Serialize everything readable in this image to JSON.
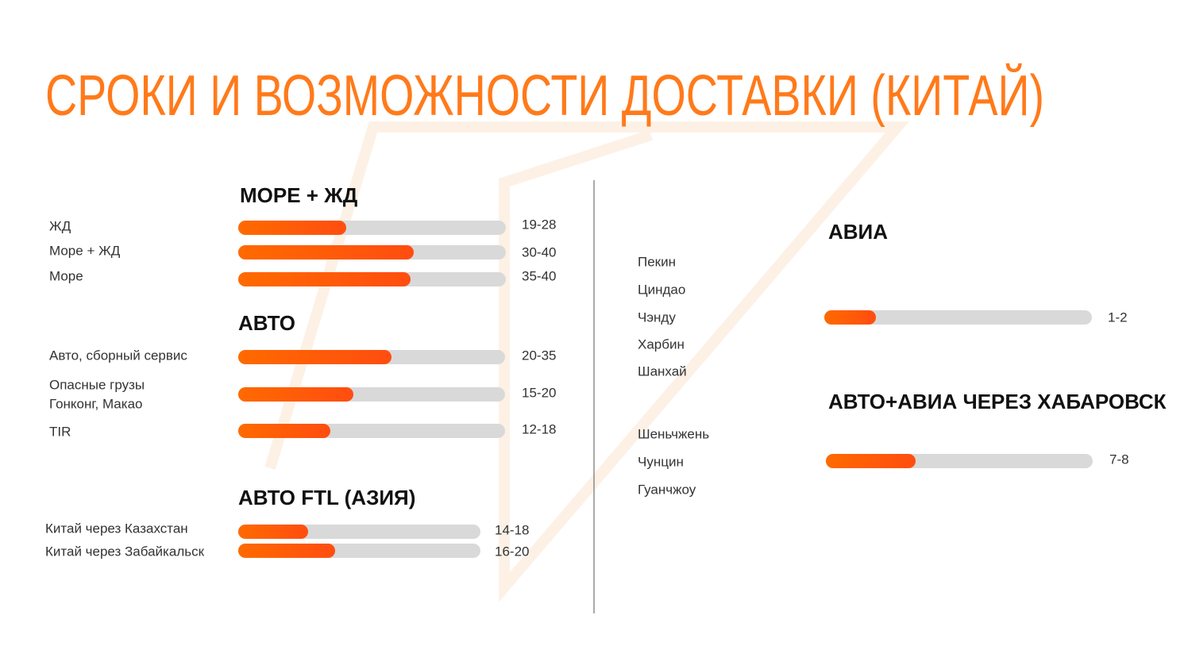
{
  "title": "СРОКИ И ВОЗМОЖНОСТИ ДОСТАВКИ (КИТАЙ)",
  "left_sections": [
    {
      "heading": "МОРЕ + ЖД",
      "rows": [
        {
          "label": [
            "ЖД"
          ],
          "range": "19-28"
        },
        {
          "label": [
            "Море + ЖД"
          ],
          "range": "30-40"
        },
        {
          "label": [
            "Море"
          ],
          "range": "35-40"
        }
      ]
    },
    {
      "heading": "АВТО",
      "rows": [
        {
          "label": [
            "Авто, сборный сервис"
          ],
          "range": "20-35"
        },
        {
          "label": [
            "Опасные грузы",
            "Гонконг, Макао"
          ],
          "range": "15-20"
        },
        {
          "label": [
            "TIR"
          ],
          "range": "12-18"
        }
      ]
    },
    {
      "heading": "АВТО FTL (АЗИЯ)",
      "rows": [
        {
          "label": [
            "Китай через Казахстан"
          ],
          "range": "14-18"
        },
        {
          "label": [
            "Китай через Забайкальск"
          ],
          "range": "16-20"
        }
      ]
    }
  ],
  "right_sections": [
    {
      "heading": "АВИА",
      "cities": [
        "Пекин",
        "Циндао",
        "Чэнду",
        "Харбин",
        "Шанхай"
      ],
      "range": "1-2"
    },
    {
      "heading": "АВТО+АВИА ЧЕРЕЗ ХАБАРОВСК",
      "cities": [
        "Шеньчжень",
        "Чунцин",
        "Гуанчжоу"
      ],
      "range": "7-8"
    }
  ]
}
